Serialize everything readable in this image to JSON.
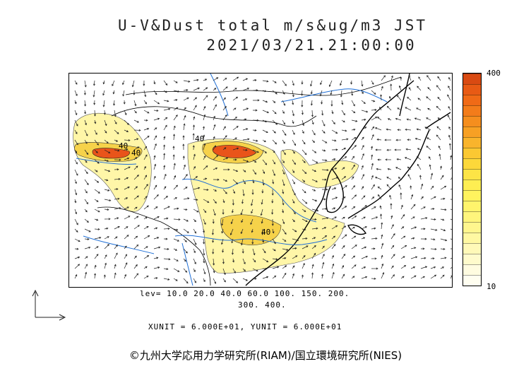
{
  "title": {
    "line1": "U-V&Dust total m/s&ug/m3 JST",
    "line2": "2021/03/21.21:00:00"
  },
  "colorbar": {
    "max_label": "400",
    "min_label": "10",
    "colors": [
      "#d94a12",
      "#e85a14",
      "#f06a16",
      "#f37c1a",
      "#f58e1e",
      "#f7a024",
      "#f9b42c",
      "#fbc832",
      "#fcd83a",
      "#fde446",
      "#feee52",
      "#fff35e",
      "#fff46c",
      "#fff57c",
      "#fff68e",
      "#fff8a2",
      "#fff9b8",
      "#fffbcc",
      "#fffce0",
      "#fffef0"
    ]
  },
  "levels": {
    "line1": "lev= 10.0 20.0 40.0 60.0 100. 150. 200.",
    "line2": "300. 400."
  },
  "contour_labels": [
    "40",
    "40",
    "40",
    "40"
  ],
  "units": "XUNIT = 6.000E+01, YUNIT = 6.000E+01",
  "copyright": "©九州大学応用力学研究所(RIAM)/国立環境研究所(NIES)",
  "colors": {
    "river": "#1f6fd6",
    "coast": "#000000",
    "arrow": "#222222",
    "dust_light": "#fff6a8",
    "dust_mid": "#f6d24a",
    "dust_high": "#e9541a"
  }
}
